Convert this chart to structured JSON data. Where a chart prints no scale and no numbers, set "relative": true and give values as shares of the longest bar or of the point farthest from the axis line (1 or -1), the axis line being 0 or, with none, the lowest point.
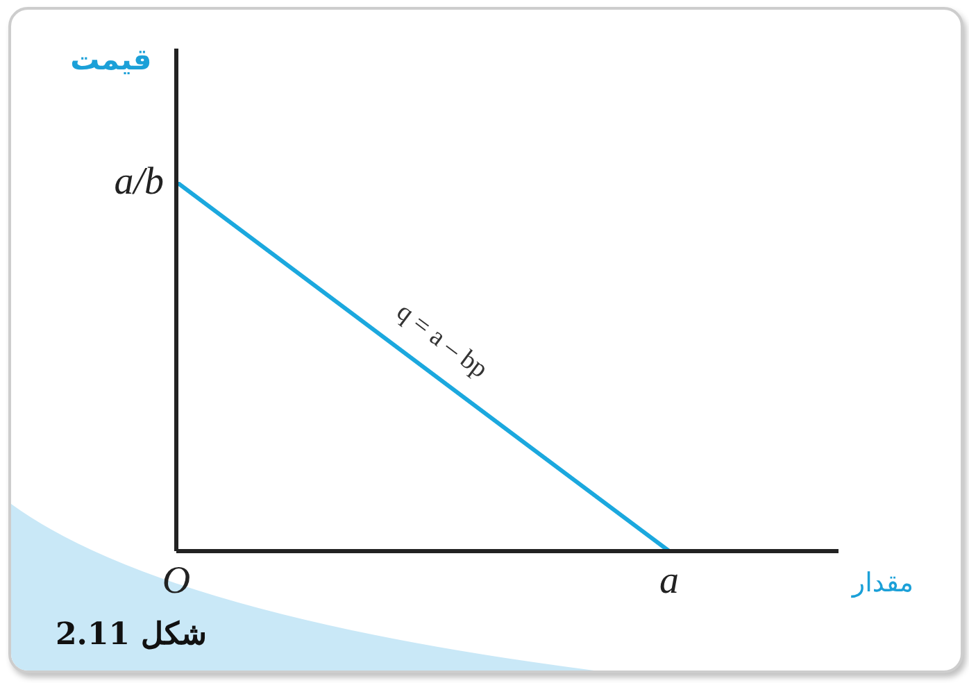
{
  "chart_data": {
    "type": "line",
    "relative": true,
    "xlabel": "مقدار",
    "ylabel": "قیمت",
    "categories": [
      "O",
      "a"
    ],
    "series": [
      {
        "name": "q = a – bp",
        "color": "#1ba8de",
        "values": [
          1,
          0
        ]
      }
    ],
    "annotations": [
      "a/b",
      "شکل 2.11"
    ]
  }
}
